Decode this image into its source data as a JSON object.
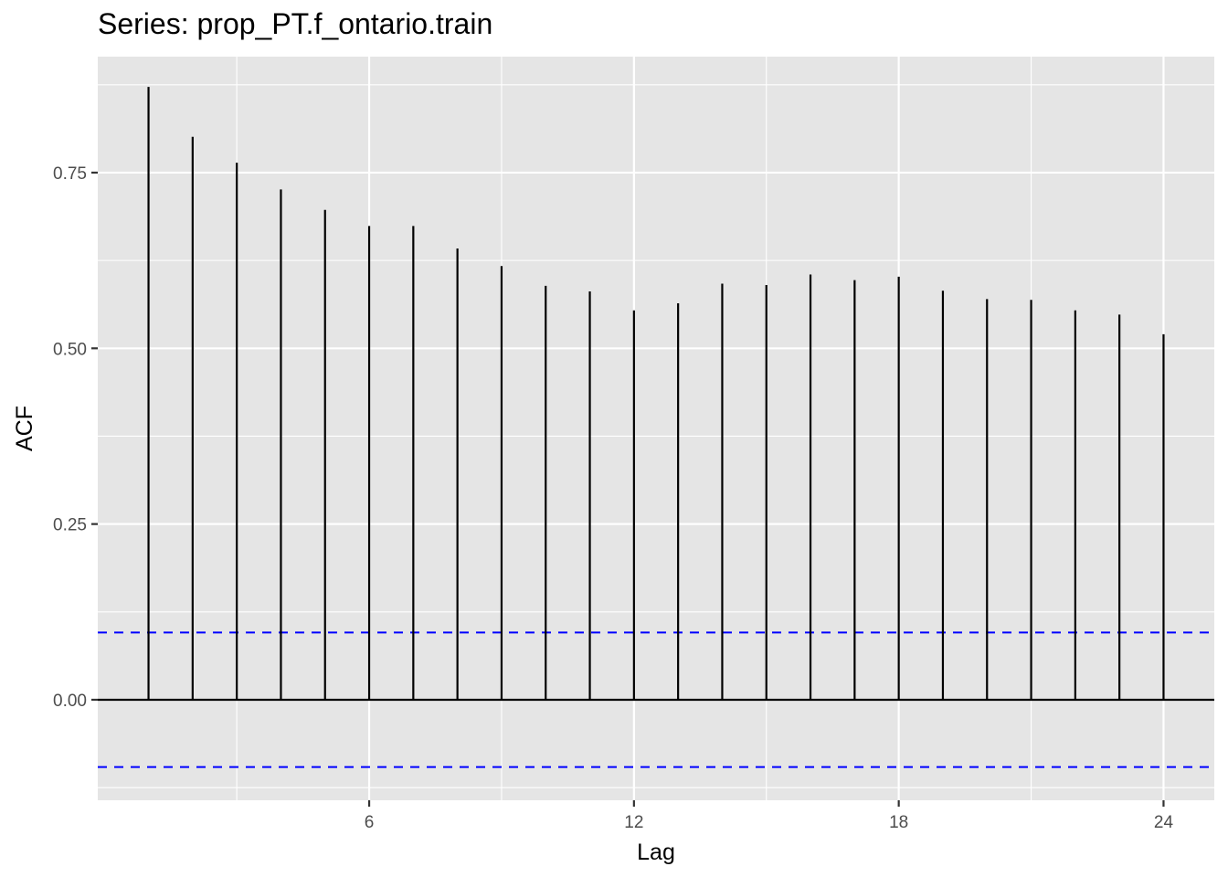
{
  "chart_data": {
    "type": "bar",
    "title": "Series: prop_PT.f_ontario.train",
    "xlabel": "Lag",
    "ylabel": "ACF",
    "lags": [
      1,
      2,
      3,
      4,
      5,
      6,
      7,
      8,
      9,
      10,
      11,
      12,
      13,
      14,
      15,
      16,
      17,
      18,
      19,
      20,
      21,
      22,
      23,
      24
    ],
    "values": [
      0.872,
      0.801,
      0.764,
      0.726,
      0.697,
      0.674,
      0.674,
      0.642,
      0.617,
      0.589,
      0.581,
      0.554,
      0.564,
      0.592,
      0.59,
      0.605,
      0.597,
      0.602,
      0.582,
      0.57,
      0.569,
      0.554,
      0.548,
      0.52
    ],
    "confidence_bound": 0.0957,
    "xlim": [
      -0.15,
      25.15
    ],
    "ylim": [
      -0.143,
      0.915
    ],
    "x_ticks": [
      6,
      12,
      18,
      24
    ],
    "x_tick_labels": [
      "6",
      "12",
      "18",
      "24"
    ],
    "y_ticks": [
      0,
      0.25,
      0.5,
      0.75
    ],
    "y_tick_labels": [
      "0.00",
      "0.25",
      "0.50",
      "0.75"
    ],
    "grid": true,
    "colors": {
      "panel": "#e5e5e5",
      "grid": "#ffffff",
      "bars": "#000000",
      "confidence": "#0000ff"
    }
  }
}
